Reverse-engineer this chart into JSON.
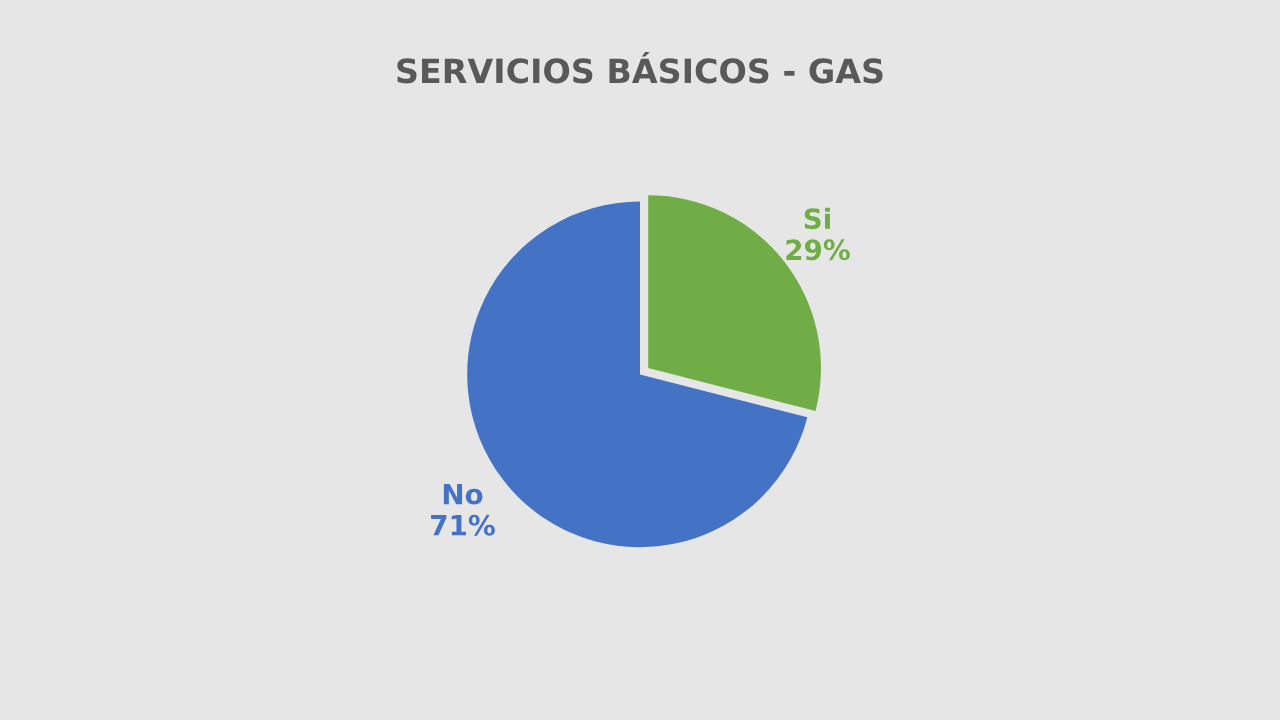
{
  "chart_data": {
    "type": "pie",
    "title": "SERVICIOS BÁSICOS - GAS",
    "categories": [
      "Si",
      "No"
    ],
    "values": [
      29,
      71
    ],
    "colors": [
      "#70ad47",
      "#4472c4"
    ],
    "value_labels": [
      "29%",
      "71%"
    ]
  }
}
